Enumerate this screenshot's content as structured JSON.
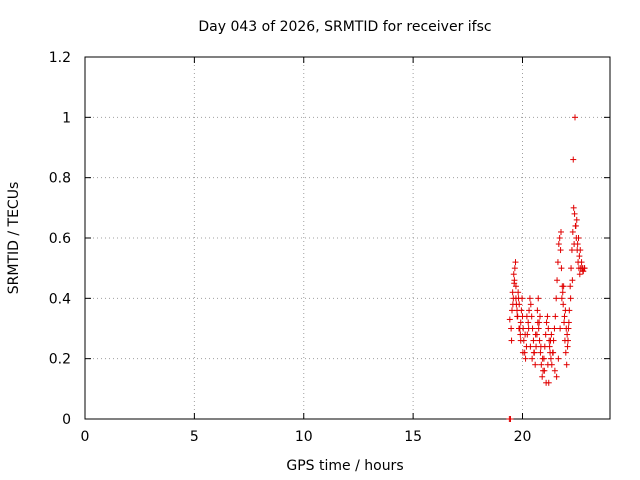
{
  "chart_data": {
    "type": "scatter",
    "title": "Day 043 of 2026, SRMTID for receiver ifsc",
    "xlabel": "GPS time / hours",
    "ylabel": "SRMTID / TECUs",
    "xlim": [
      0,
      24
    ],
    "ylim": [
      0,
      1.2
    ],
    "xticks": [
      0,
      5,
      10,
      15,
      20
    ],
    "xtick_labels": [
      "0",
      "5",
      "10",
      "15",
      "20"
    ],
    "yticks": [
      0,
      0.2,
      0.4,
      0.6,
      0.8,
      1.0,
      1.2
    ],
    "ytick_labels": [
      "0",
      "0.2",
      "0.4",
      "0.6",
      "0.8",
      "1",
      "1.2"
    ],
    "grid": true,
    "marker": "+",
    "color": "#e00000",
    "series": [
      {
        "name": "SRMTID",
        "x": [
          19.4,
          19.45,
          19.42,
          19.48,
          19.52,
          19.55,
          19.58,
          19.6,
          19.62,
          19.65,
          19.68,
          19.7,
          19.72,
          19.75,
          19.78,
          19.8,
          19.82,
          19.85,
          19.88,
          19.9,
          19.92,
          19.95,
          19.98,
          20.0,
          20.03,
          20.06,
          20.1,
          20.14,
          20.18,
          20.22,
          20.26,
          20.3,
          20.34,
          20.38,
          20.42,
          20.46,
          20.5,
          20.54,
          20.58,
          20.62,
          20.66,
          20.7,
          20.74,
          20.78,
          20.82,
          20.86,
          20.9,
          20.94,
          20.98,
          21.02,
          21.06,
          21.1,
          21.14,
          21.18,
          21.22,
          21.26,
          21.3,
          21.34,
          21.38,
          21.42,
          21.46,
          21.5,
          21.54,
          21.58,
          21.62,
          21.66,
          21.7,
          21.74,
          21.78,
          21.82,
          21.86,
          21.9,
          21.94,
          21.98,
          22.02,
          22.06,
          22.1,
          22.14,
          22.18,
          22.22,
          22.26,
          22.3,
          22.34,
          22.38,
          22.42,
          22.46,
          22.5,
          22.54,
          22.58,
          22.62,
          22.66,
          22.7,
          22.74,
          22.78,
          22.82,
          19.5,
          19.56,
          19.63,
          19.7,
          19.76,
          19.84,
          19.92,
          20.02,
          20.12,
          20.2,
          20.28,
          20.36,
          20.44,
          20.52,
          20.6,
          20.68,
          20.76,
          20.84,
          20.92,
          21.0,
          21.08,
          21.16,
          21.24,
          21.32,
          21.4,
          21.48,
          21.56,
          21.64,
          21.72,
          21.8,
          21.88,
          21.96,
          22.04,
          22.12,
          22.2,
          22.28,
          22.36,
          22.44,
          22.52,
          22.6,
          22.68,
          22.76,
          22.84,
          21.76,
          21.84,
          22.32,
          22.4,
          22.48,
          22.56,
          22.64,
          21.2,
          21.28,
          20.72,
          20.8,
          21.92,
          22.0,
          22.08
        ],
        "y": [
          0.0,
          0.0,
          0.33,
          0.3,
          0.36,
          0.42,
          0.4,
          0.48,
          0.45,
          0.5,
          0.52,
          0.44,
          0.38,
          0.36,
          0.34,
          0.42,
          0.4,
          0.38,
          0.3,
          0.28,
          0.32,
          0.36,
          0.4,
          0.34,
          0.3,
          0.26,
          0.22,
          0.2,
          0.24,
          0.28,
          0.32,
          0.36,
          0.4,
          0.38,
          0.34,
          0.3,
          0.26,
          0.22,
          0.18,
          0.24,
          0.28,
          0.32,
          0.3,
          0.26,
          0.22,
          0.18,
          0.14,
          0.16,
          0.2,
          0.24,
          0.28,
          0.32,
          0.34,
          0.3,
          0.26,
          0.22,
          0.2,
          0.18,
          0.22,
          0.26,
          0.3,
          0.34,
          0.4,
          0.46,
          0.52,
          0.58,
          0.6,
          0.56,
          0.5,
          0.44,
          0.38,
          0.32,
          0.26,
          0.22,
          0.18,
          0.24,
          0.3,
          0.36,
          0.44,
          0.5,
          0.56,
          0.62,
          0.7,
          0.68,
          0.64,
          0.6,
          0.56,
          0.52,
          0.5,
          0.48,
          0.5,
          0.52,
          0.5,
          0.49,
          0.5,
          0.26,
          0.38,
          0.46,
          0.4,
          0.34,
          0.3,
          0.26,
          0.22,
          0.28,
          0.34,
          0.3,
          0.24,
          0.2,
          0.22,
          0.28,
          0.36,
          0.32,
          0.24,
          0.2,
          0.16,
          0.12,
          0.18,
          0.24,
          0.28,
          0.22,
          0.16,
          0.14,
          0.2,
          0.3,
          0.4,
          0.44,
          0.36,
          0.28,
          0.32,
          0.4,
          0.46,
          0.58,
          0.64,
          0.58,
          0.54,
          0.5,
          0.49,
          0.5,
          0.62,
          0.42,
          0.86,
          1.0,
          0.66,
          0.6,
          0.56,
          0.12,
          0.26,
          0.4,
          0.34,
          0.34,
          0.3,
          0.26
        ]
      }
    ]
  }
}
